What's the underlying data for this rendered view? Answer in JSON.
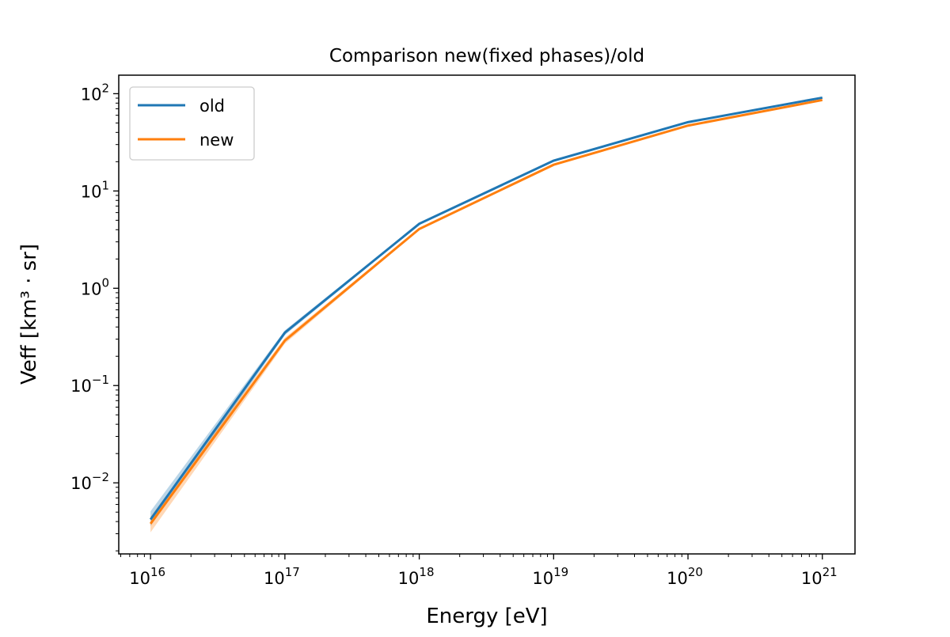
{
  "chart_data": {
    "type": "line",
    "title": "Comparison new(fixed phases)/old",
    "xlabel": "Energy [eV]",
    "ylabel": "Veff [km³ · sr]",
    "xscale": "log",
    "yscale": "log",
    "xlim": [
      5800000000000000.0,
      1.75e+21
    ],
    "ylim": [
      0.00186,
      155
    ],
    "x_ticks": [
      {
        "base": "10",
        "exp": "16",
        "value": 1e+16
      },
      {
        "base": "10",
        "exp": "17",
        "value": 1e+17
      },
      {
        "base": "10",
        "exp": "18",
        "value": 1e+18
      },
      {
        "base": "10",
        "exp": "19",
        "value": 1e+19
      },
      {
        "base": "10",
        "exp": "20",
        "value": 1e+20
      },
      {
        "base": "10",
        "exp": "21",
        "value": 1e+21
      }
    ],
    "y_ticks": [
      {
        "base": "10",
        "exp": "−2",
        "value": 0.01
      },
      {
        "base": "10",
        "exp": "−1",
        "value": 0.1
      },
      {
        "base": "10",
        "exp": "0",
        "value": 1
      },
      {
        "base": "10",
        "exp": "1",
        "value": 10
      },
      {
        "base": "10",
        "exp": "2",
        "value": 100
      }
    ],
    "grid": false,
    "legend_position": "top-left",
    "x": [
      1e+16,
      1e+17,
      1e+18,
      1e+19,
      1e+20,
      1e+21
    ],
    "series": [
      {
        "name": "old",
        "color": "#1f77b4",
        "values": [
          0.0042,
          0.35,
          4.6,
          20.5,
          51,
          91
        ],
        "lower": [
          0.0036,
          0.33,
          4.5,
          20.1,
          50.3,
          90
        ],
        "upper": [
          0.0051,
          0.37,
          4.7,
          20.9,
          51.7,
          92
        ]
      },
      {
        "name": "new",
        "color": "#ff7f0e",
        "values": [
          0.0038,
          0.29,
          4.07,
          18.6,
          47,
          86
        ],
        "lower": [
          0.0031,
          0.27,
          3.97,
          18.2,
          46.3,
          85
        ],
        "upper": [
          0.0045,
          0.31,
          4.17,
          19.0,
          47.7,
          87
        ]
      }
    ]
  }
}
